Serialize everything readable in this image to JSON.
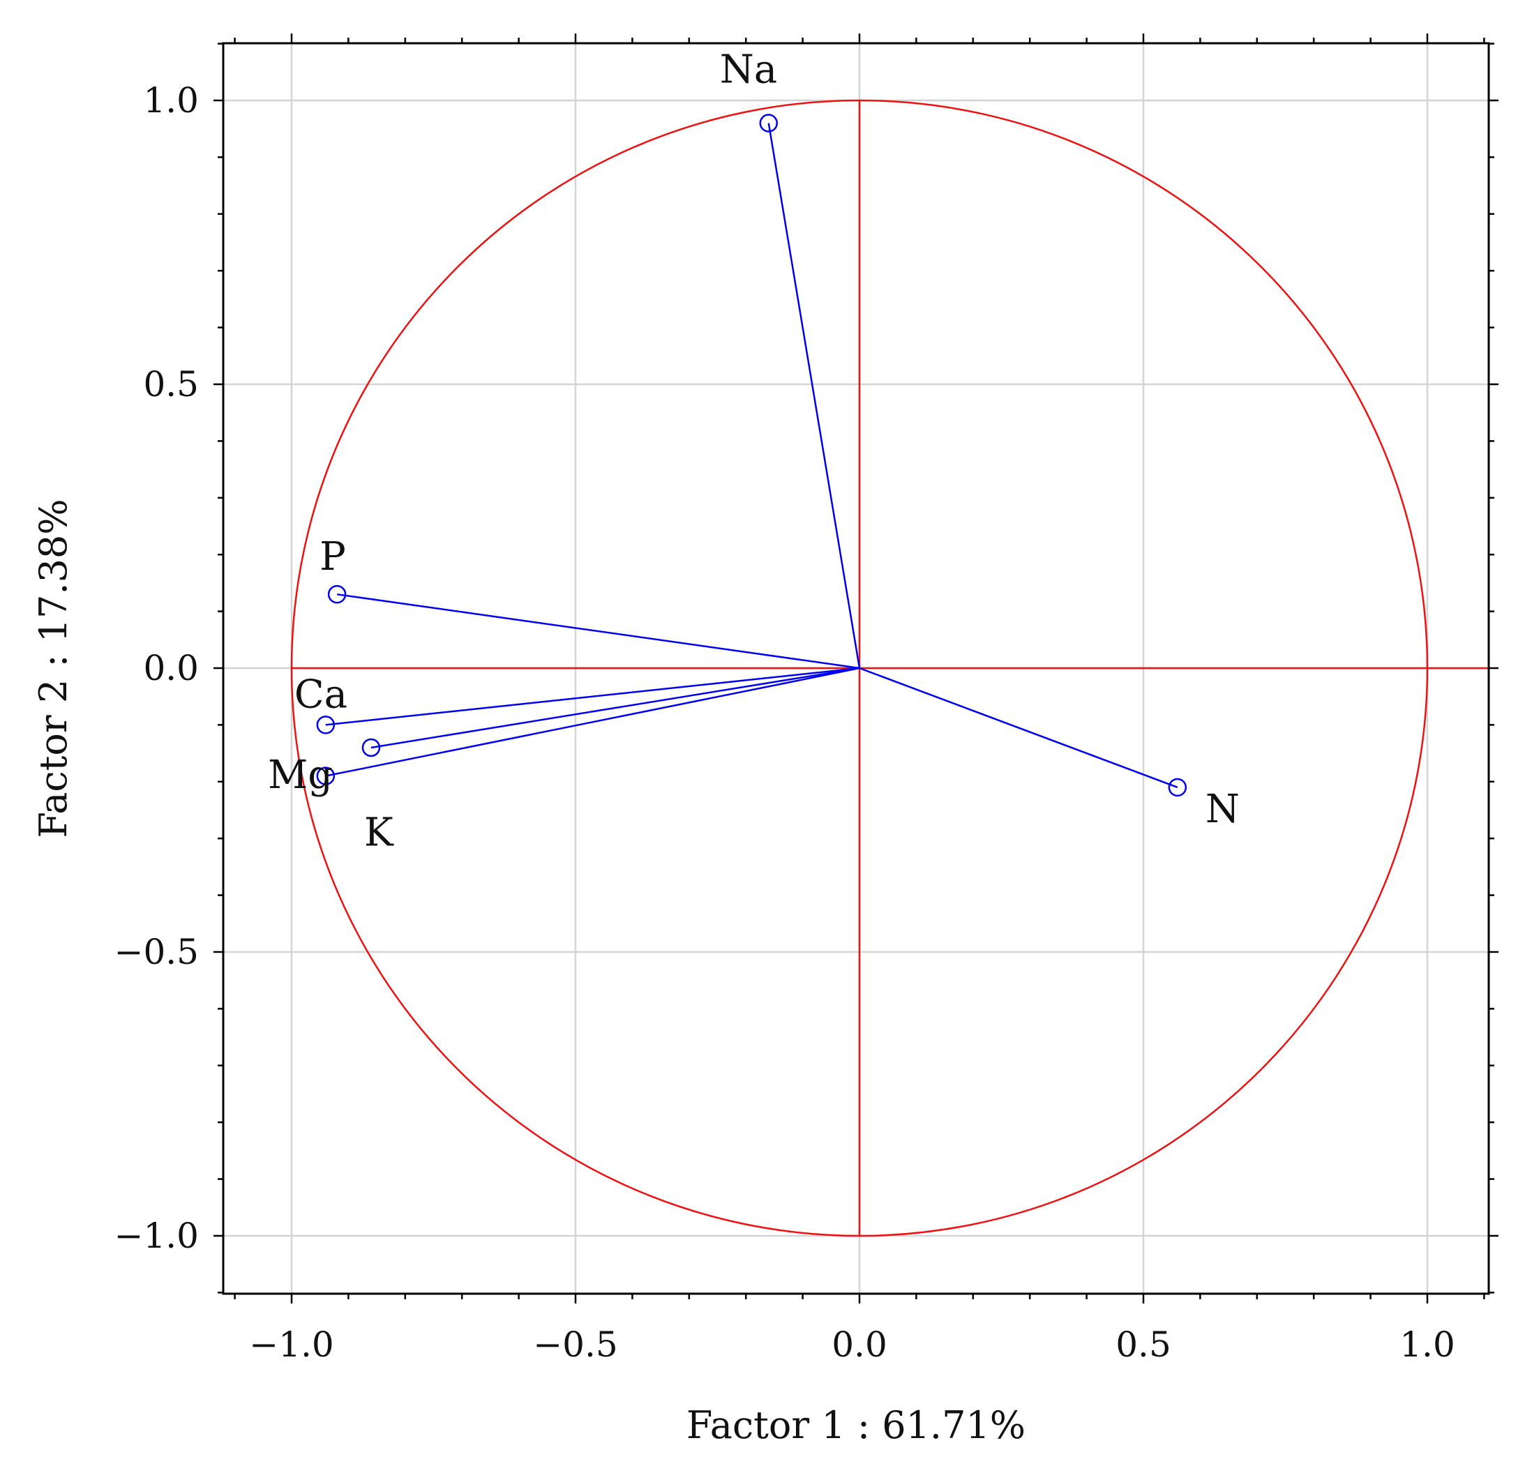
{
  "chart_data": {
    "type": "scatter",
    "subtype": "pca-variable-loadings",
    "title": "",
    "xlabel": "Factor 1 : 61.71%",
    "ylabel": "Factor 2 : 17.38%",
    "xlim": [
      -1.12,
      1.1
    ],
    "ylim": [
      -1.1,
      1.1
    ],
    "x_ticks": [
      -1.0,
      -0.5,
      0.0,
      0.5,
      1.0
    ],
    "x_tick_labels": [
      "−1.0",
      "−0.5",
      "0.0",
      "0.5",
      "1.0"
    ],
    "y_ticks": [
      1.0,
      0.5,
      0.0,
      -0.5,
      -1.0
    ],
    "y_tick_labels": [
      "1.0",
      "0.5",
      "0.0",
      "−0.5",
      "−1.0"
    ],
    "grid": true,
    "unit_circle": true,
    "reference_lines": [
      "x=0",
      "y=0"
    ],
    "colors": {
      "vectors": "#0000ee",
      "circle": "#ee1111",
      "reference_lines": "#ee1111",
      "grid": "#d4d4d4",
      "frame": "#000000"
    },
    "points": [
      {
        "label": "Na",
        "x": -0.16,
        "y": 0.96
      },
      {
        "label": "P",
        "x": -0.92,
        "y": 0.13
      },
      {
        "label": "Ca",
        "x": -0.94,
        "y": -0.1
      },
      {
        "label": "Mg",
        "x": -0.86,
        "y": -0.14
      },
      {
        "label": "K",
        "x": -0.94,
        "y": -0.19
      },
      {
        "label": "N",
        "x": 0.56,
        "y": -0.21
      }
    ]
  }
}
